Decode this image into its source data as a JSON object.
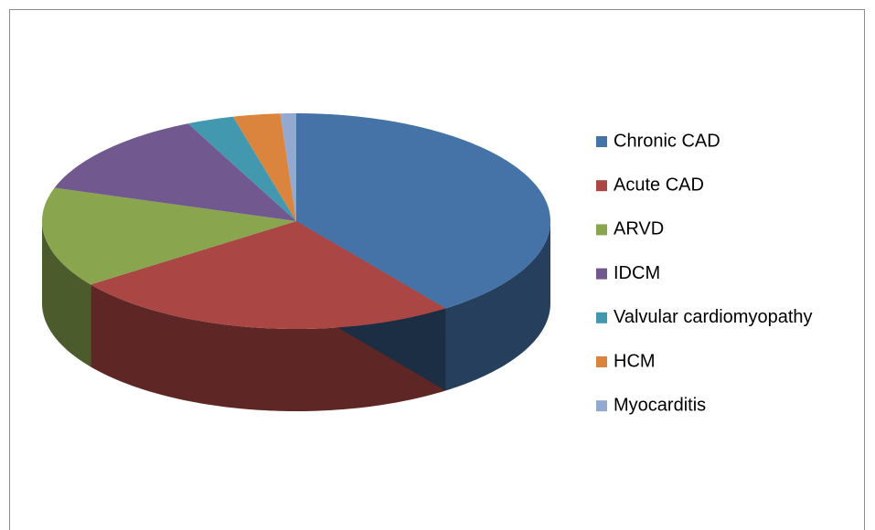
{
  "chart_data": {
    "type": "pie",
    "categories": [
      "Chronic CAD",
      "Acute CAD",
      "ARVD",
      "IDCM",
      "Valvular cardiomyopathy",
      "HCM",
      "Myocarditis"
    ],
    "values": [
      40,
      25,
      15,
      13,
      3,
      3,
      1
    ],
    "colors": [
      "#4572A7",
      "#AA4643",
      "#89A54E",
      "#71588F",
      "#4198AF",
      "#DB843D",
      "#93A9CF"
    ],
    "legend": "right"
  }
}
